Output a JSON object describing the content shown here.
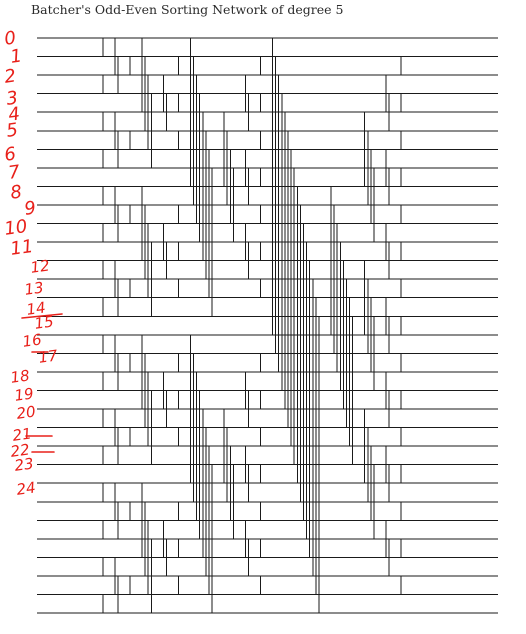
{
  "title": "Batcher's Odd-Even Sorting Network of degree 5",
  "network": {
    "wire_count": 32,
    "stage_count": 15,
    "line_color": "#1a1a1a",
    "annotation_color": "#e8201a"
  },
  "annotations": {
    "note": "Handwritten red wire indices drawn over the left edge",
    "labels": [
      "0",
      "1",
      "2",
      "3",
      "4",
      "5",
      "6",
      "7",
      "8",
      "9",
      "10",
      "11",
      "12",
      "13",
      "14",
      "15",
      "16",
      "17",
      "18",
      "19",
      "20",
      "21",
      "22",
      "23",
      "24"
    ]
  }
}
